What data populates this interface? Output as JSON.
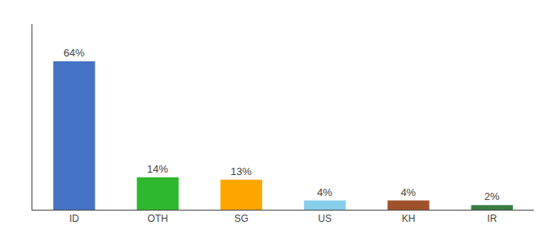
{
  "chart_data": {
    "type": "bar",
    "categories": [
      "ID",
      "OTH",
      "SG",
      "US",
      "KH",
      "IR"
    ],
    "values": [
      64,
      14,
      13,
      4,
      4,
      2
    ],
    "value_labels": [
      "64%",
      "14%",
      "13%",
      "4%",
      "4%",
      "2%"
    ],
    "data_labels": true,
    "colors": [
      "#4472c4",
      "#2db82d",
      "#ffa500",
      "#87ceeb",
      "#a0522d",
      "#3a7d44"
    ],
    "ylim": [
      0,
      80
    ],
    "grid": false,
    "tick_labels": "x"
  }
}
